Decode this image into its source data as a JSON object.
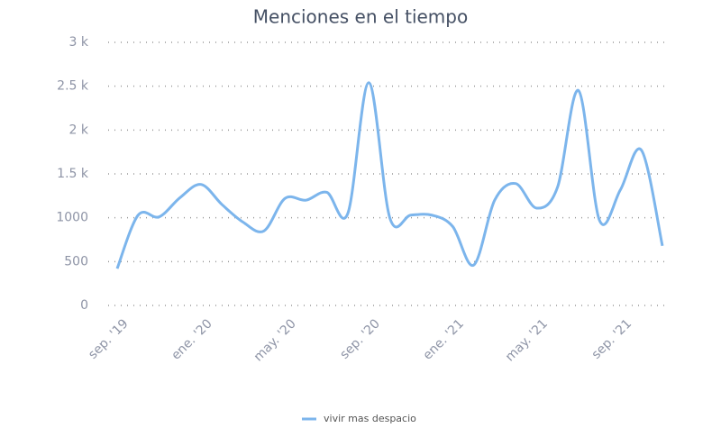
{
  "chart_data": {
    "type": "line",
    "title": "Menciones en el tiempo",
    "categories": [
      "sep. '19",
      null,
      null,
      null,
      "ene. '20",
      null,
      null,
      null,
      "may. '20",
      null,
      null,
      null,
      "sep. '20",
      null,
      null,
      null,
      "ene. '21",
      null,
      null,
      null,
      "may. '21",
      null,
      null,
      null,
      "sep. '21",
      null,
      null
    ],
    "series": [
      {
        "name": "vivir mas despacio",
        "color": "#7cb5ec",
        "values": [
          420,
          1030,
          1010,
          1230,
          1380,
          1150,
          950,
          850,
          1220,
          1200,
          1290,
          1050,
          2540,
          1000,
          1030,
          1030,
          900,
          460,
          1200,
          1390,
          1110,
          1350,
          2450,
          970,
          1320,
          1770,
          680
        ]
      }
    ],
    "ylim": [
      0,
      3000
    ],
    "yticks": [
      0,
      500,
      1000,
      {
        "value": 1500,
        "label": "1.5 k"
      },
      {
        "value": 2000,
        "label": "2 k"
      },
      {
        "value": 2500,
        "label": "2.5 k"
      },
      {
        "value": 3000,
        "label": "3 k"
      }
    ],
    "grid": true,
    "legend": "bottom"
  }
}
